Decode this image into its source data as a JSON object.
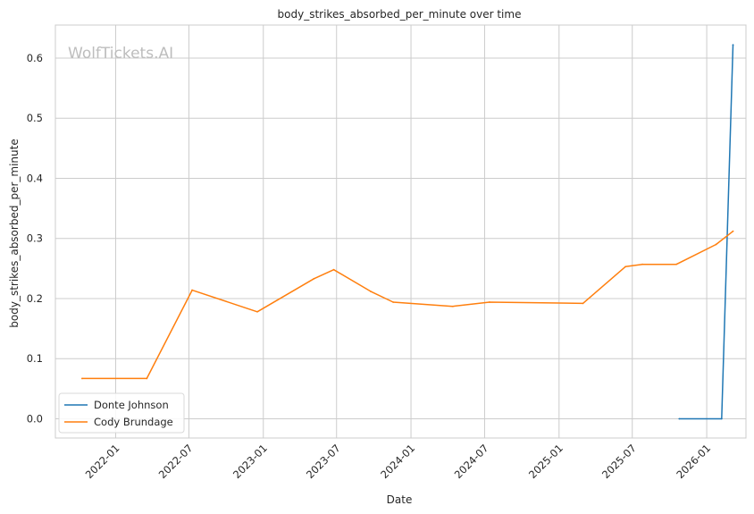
{
  "chart_data": {
    "type": "line",
    "title": "body_strikes_absorbed_per_minute over time",
    "xlabel": "Date",
    "ylabel": "body_strikes_absorbed_per_minute",
    "watermark": "WolfTickets.AI",
    "x_axis_type": "date",
    "xlim": [
      "2021-08-05",
      "2026-04-08"
    ],
    "ylim": [
      -0.032,
      0.655
    ],
    "x_ticks": [
      "2022-01",
      "2022-07",
      "2023-01",
      "2023-07",
      "2024-01",
      "2024-07",
      "2025-01",
      "2025-07",
      "2026-01"
    ],
    "y_ticks": [
      0.0,
      0.1,
      0.2,
      0.3,
      0.4,
      0.5,
      0.6
    ],
    "y_tick_labels": [
      "0.0",
      "0.1",
      "0.2",
      "0.3",
      "0.4",
      "0.5",
      "0.6"
    ],
    "grid": true,
    "legend_position": "lower-left",
    "series": [
      {
        "name": "Donte Johnson",
        "color": "#1f77b4",
        "points": [
          {
            "x": "2025-10-25",
            "y": 0.0
          },
          {
            "x": "2026-02-07",
            "y": 0.0
          },
          {
            "x": "2026-03-07",
            "y": 0.622
          }
        ]
      },
      {
        "name": "Cody Brundage",
        "color": "#ff7f0e",
        "points": [
          {
            "x": "2021-10-10",
            "y": 0.067
          },
          {
            "x": "2022-03-19",
            "y": 0.067
          },
          {
            "x": "2022-07-09",
            "y": 0.214
          },
          {
            "x": "2022-12-17",
            "y": 0.178
          },
          {
            "x": "2023-05-06",
            "y": 0.233
          },
          {
            "x": "2023-06-24",
            "y": 0.248
          },
          {
            "x": "2023-09-23",
            "y": 0.212
          },
          {
            "x": "2023-11-18",
            "y": 0.194
          },
          {
            "x": "2024-04-13",
            "y": 0.187
          },
          {
            "x": "2024-07-13",
            "y": 0.194
          },
          {
            "x": "2025-03-01",
            "y": 0.192
          },
          {
            "x": "2025-06-14",
            "y": 0.253
          },
          {
            "x": "2025-07-26",
            "y": 0.257
          },
          {
            "x": "2025-10-18",
            "y": 0.257
          },
          {
            "x": "2026-01-24",
            "y": 0.29
          },
          {
            "x": "2026-03-07",
            "y": 0.312
          }
        ]
      }
    ]
  }
}
